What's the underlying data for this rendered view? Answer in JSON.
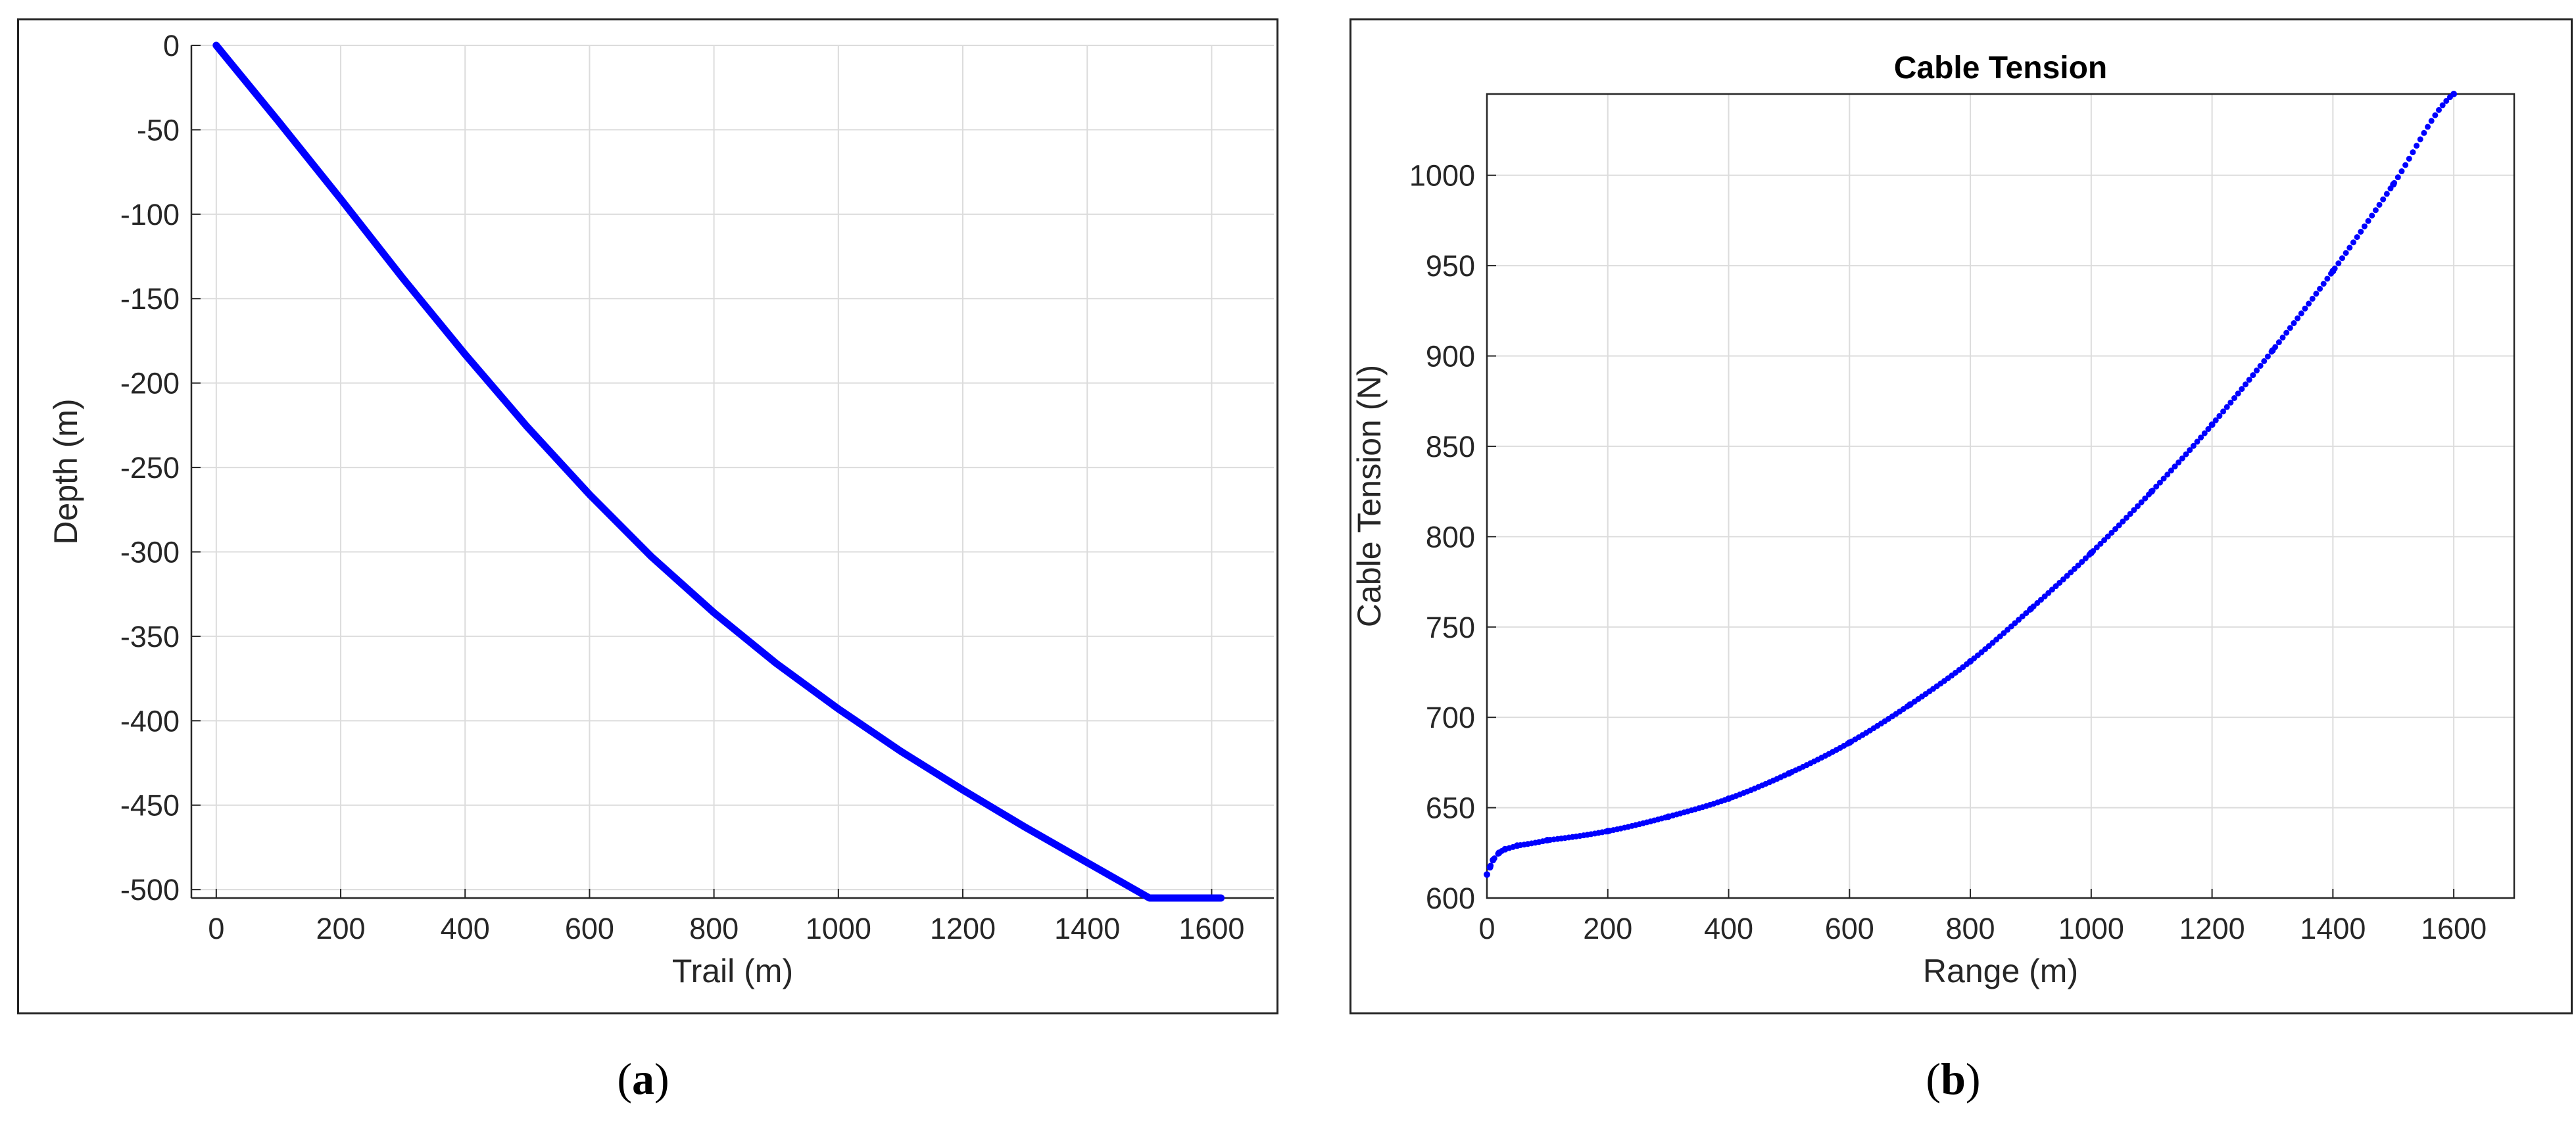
{
  "chart_data": [
    {
      "type": "line",
      "title": "",
      "xlabel": "Trail (m)",
      "ylabel": "Depth (m)",
      "xlim": [
        -40,
        1700
      ],
      "ylim": [
        -505,
        0
      ],
      "xticks": [
        0,
        200,
        400,
        600,
        800,
        1000,
        1200,
        1400,
        1600
      ],
      "yticks": [
        0,
        -50,
        -100,
        -150,
        -200,
        -250,
        -300,
        -350,
        -400,
        -450,
        -500
      ],
      "grid": true,
      "series": [
        {
          "color": "#0000ff",
          "x": [
            0,
            100,
            200,
            300,
            400,
            500,
            600,
            700,
            800,
            900,
            1000,
            1100,
            1200,
            1300,
            1400,
            1500,
            1615
          ],
          "y": [
            0,
            -45,
            -91,
            -138,
            -183,
            -226,
            -266,
            -303,
            -336,
            -366,
            -393,
            -418,
            -441,
            -463,
            -484,
            -505,
            -505
          ]
        }
      ]
    },
    {
      "type": "scatter",
      "title": "Cable Tension",
      "xlabel": "Range (m)",
      "ylabel": "Cable Tension (N)",
      "xlim": [
        0,
        1700
      ],
      "ylim": [
        600,
        1045
      ],
      "xticks": [
        0,
        200,
        400,
        600,
        800,
        1000,
        1200,
        1400,
        1600
      ],
      "yticks": [
        600,
        650,
        700,
        750,
        800,
        850,
        900,
        950,
        1000
      ],
      "grid": true,
      "series": [
        {
          "color": "#0000ff",
          "x": [
            0,
            5,
            10,
            20,
            30,
            50,
            100,
            200,
            300,
            400,
            500,
            600,
            700,
            800,
            900,
            1000,
            1100,
            1200,
            1300,
            1400,
            1500,
            1600
          ],
          "y": [
            613,
            617,
            621,
            625,
            627,
            629,
            632,
            637,
            645,
            655,
            669,
            686,
            707,
            731,
            760,
            791,
            825,
            862,
            903,
            947,
            995,
            1045
          ]
        }
      ]
    }
  ],
  "captions": {
    "a": "a",
    "b": "b"
  }
}
